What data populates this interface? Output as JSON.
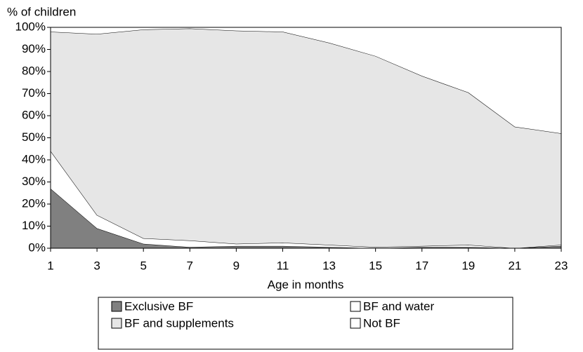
{
  "chart_data": {
    "type": "stacked_area",
    "y_axis_label": "% of children",
    "x_axis_label": "Age in months",
    "x": [
      1,
      3,
      5,
      7,
      9,
      11,
      13,
      15,
      17,
      19,
      21,
      23
    ],
    "xlim": [
      1,
      23
    ],
    "xticks": [
      1,
      3,
      5,
      7,
      9,
      11,
      13,
      15,
      17,
      19,
      21,
      23
    ],
    "ylim": [
      0,
      100
    ],
    "yticks": [
      {
        "value": 0,
        "label": "0%"
      },
      {
        "value": 10,
        "label": "10%"
      },
      {
        "value": 20,
        "label": "20%"
      },
      {
        "value": 30,
        "label": "30%"
      },
      {
        "value": 40,
        "label": "40%"
      },
      {
        "value": 50,
        "label": "50%"
      },
      {
        "value": 60,
        "label": "60%"
      },
      {
        "value": 70,
        "label": "70%"
      },
      {
        "value": 80,
        "label": "80%"
      },
      {
        "value": 90,
        "label": "90%"
      },
      {
        "value": 100,
        "label": "100%"
      }
    ],
    "series": [
      {
        "name": "Exclusive BF",
        "color": "#808080",
        "values": [
          27,
          9,
          2,
          0.5,
          1,
          1,
          0.5,
          0,
          0.5,
          0.5,
          0,
          1
        ]
      },
      {
        "name": "BF and water",
        "color": "#ffffff",
        "values": [
          17,
          6,
          2.5,
          3,
          1,
          1.5,
          1,
          0.5,
          0.5,
          1,
          0,
          0.5
        ]
      },
      {
        "name": "BF and supplements",
        "color": "#e6e6e6",
        "values": [
          54,
          82,
          94.5,
          96,
          96.5,
          95.5,
          91.5,
          86.5,
          77,
          69,
          55,
          50.5
        ]
      },
      {
        "name": "Not BF",
        "color": "#ffffff",
        "values": [
          2,
          3,
          1,
          0.5,
          1.5,
          2,
          7,
          13,
          22,
          29.5,
          45,
          48
        ]
      }
    ],
    "legend": "bottom"
  }
}
